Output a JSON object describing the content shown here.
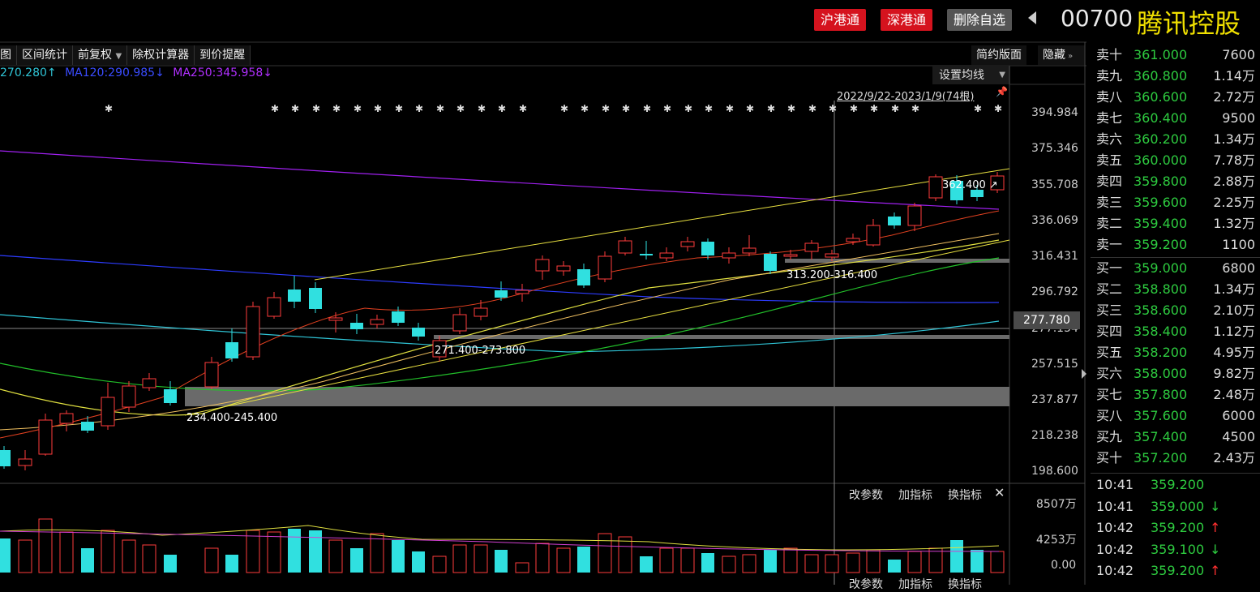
{
  "header": {
    "btn_sh": "沪港通",
    "btn_sz": "深港通",
    "btn_remove": "删除自选",
    "code": "00700",
    "name": "腾讯控股"
  },
  "toolbar": {
    "items": [
      "图形",
      "区间统计",
      "前复权",
      "除权计算器",
      "到价提醒"
    ],
    "simple": "简约版面",
    "hide": "隐藏"
  },
  "ma": {
    "ma60": "270.280↑",
    "ma120": "MA120:290.985↓",
    "ma250": "MA250:345.958↓",
    "colors": {
      "ma60": "#2fc4d6",
      "ma120": "#2d3cff",
      "ma250": "#a020f0"
    }
  },
  "setting_label": "设置均线",
  "range_label": "2022/9/22-2023/1/9(74根)",
  "y_axis": [
    "394.984",
    "375.346",
    "355.708",
    "336.069",
    "316.431",
    "296.792",
    "277.154",
    "257.515",
    "237.877",
    "218.238",
    "198.600"
  ],
  "current_price_tag": "277.780",
  "annotations": {
    "high": "362.400",
    "zone1": "313.200-316.400",
    "zone2": "271.400-273.800",
    "zone3": "234.400-245.400"
  },
  "volume": {
    "labels": [
      "8507万",
      "4253万",
      "0.00"
    ],
    "buttons": [
      "改参数",
      "加指标",
      "换指标"
    ]
  },
  "orderbook": {
    "asks": [
      {
        "label": "卖十",
        "price": "361.000",
        "vol": "7600"
      },
      {
        "label": "卖九",
        "price": "360.800",
        "vol": "1.14万"
      },
      {
        "label": "卖八",
        "price": "360.600",
        "vol": "2.72万"
      },
      {
        "label": "卖七",
        "price": "360.400",
        "vol": "9500"
      },
      {
        "label": "卖六",
        "price": "360.200",
        "vol": "1.34万"
      },
      {
        "label": "卖五",
        "price": "360.000",
        "vol": "7.78万"
      },
      {
        "label": "卖四",
        "price": "359.800",
        "vol": "2.88万"
      },
      {
        "label": "卖三",
        "price": "359.600",
        "vol": "2.25万"
      },
      {
        "label": "卖二",
        "price": "359.400",
        "vol": "1.32万"
      },
      {
        "label": "卖一",
        "price": "359.200",
        "vol": "1100"
      }
    ],
    "bids": [
      {
        "label": "买一",
        "price": "359.000",
        "vol": "6800"
      },
      {
        "label": "买二",
        "price": "358.800",
        "vol": "1.34万"
      },
      {
        "label": "买三",
        "price": "358.600",
        "vol": "2.10万"
      },
      {
        "label": "买四",
        "price": "358.400",
        "vol": "1.12万"
      },
      {
        "label": "买五",
        "price": "358.200",
        "vol": "4.95万"
      },
      {
        "label": "买六",
        "price": "358.000",
        "vol": "9.82万"
      },
      {
        "label": "买七",
        "price": "357.800",
        "vol": "2.48万"
      },
      {
        "label": "买八",
        "price": "357.600",
        "vol": "6000"
      },
      {
        "label": "买九",
        "price": "357.400",
        "vol": "4500"
      },
      {
        "label": "买十",
        "price": "357.200",
        "vol": "2.43万"
      }
    ]
  },
  "ticks": [
    {
      "time": "10:41",
      "price": "359.200",
      "arrow": ""
    },
    {
      "time": "10:41",
      "price": "359.000",
      "arrow": "↓",
      "color": "#2ecc40"
    },
    {
      "time": "10:42",
      "price": "359.200",
      "arrow": "↑",
      "color": "#ff3030"
    },
    {
      "time": "10:42",
      "price": "359.100",
      "arrow": "↓",
      "color": "#2ecc40"
    },
    {
      "time": "10:42",
      "price": "359.200",
      "arrow": "↑",
      "color": "#ff3030"
    }
  ]
}
